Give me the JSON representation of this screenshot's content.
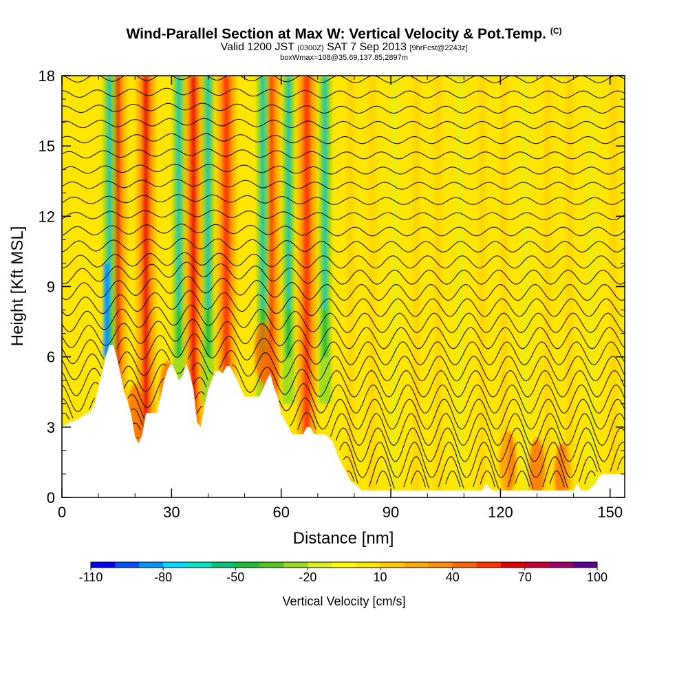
{
  "title": {
    "main": "Wind-Parallel Section at Max W: Vertical Velocity & Pot.Temp.",
    "unit_tag": "(C)",
    "line2_a": "Valid 1200 JST",
    "line2_b": "(0300Z)",
    "line2_c": "SAT 7 Sep 2013",
    "line2_d": "[9hrFcst@2243z]",
    "line3": "boxWmax=108@35.69,137.85,2897m"
  },
  "chart_data": {
    "type": "heatmap",
    "xlabel": "Distance [nm]",
    "ylabel": "Height [Kft MSL]",
    "xlim": [
      0,
      154
    ],
    "ylim": [
      0,
      18
    ],
    "x_ticks": [
      "0",
      "30",
      "60",
      "90",
      "120",
      "150"
    ],
    "y_ticks": [
      "0",
      "3",
      "6",
      "9",
      "12",
      "15",
      "18"
    ],
    "grid": false,
    "colorbar": {
      "label": "Vertical Velocity [cm/s]",
      "tick_labels": [
        "-110",
        "-80",
        "-50",
        "-20",
        "10",
        "40",
        "70",
        "100"
      ],
      "colors": [
        "#0000ff",
        "#0050ff",
        "#0096ff",
        "#00dcff",
        "#00e6c8",
        "#00c878",
        "#1ebe3c",
        "#50c81e",
        "#96dc1e",
        "#dcf01e",
        "#ffff00",
        "#ffe600",
        "#ffc800",
        "#ffaa00",
        "#ff8c00",
        "#ff6400",
        "#ff3200",
        "#e60000",
        "#c80032",
        "#a0006e",
        "#5a0096"
      ]
    },
    "updraft_bands_x": [
      15,
      23,
      36,
      45,
      57,
      67
    ],
    "downdraft_bands_x": [
      13,
      32,
      40,
      55,
      62,
      72
    ],
    "terrain": [
      [
        0,
        3.0
      ],
      [
        2,
        3.2
      ],
      [
        4,
        3.3
      ],
      [
        6,
        3.5
      ],
      [
        8,
        3.7
      ],
      [
        9,
        4.0
      ],
      [
        10,
        4.7
      ],
      [
        11,
        5.3
      ],
      [
        12,
        6.0
      ],
      [
        13,
        6.5
      ],
      [
        14,
        6.5
      ],
      [
        15,
        6.0
      ],
      [
        16,
        5.3
      ],
      [
        17,
        4.5
      ],
      [
        18,
        4.1
      ],
      [
        19,
        3.5
      ],
      [
        20,
        2.6
      ],
      [
        21,
        2.3
      ],
      [
        22,
        2.7
      ],
      [
        23,
        3.6
      ],
      [
        24,
        3.6
      ],
      [
        25,
        3.6
      ],
      [
        26,
        3.6
      ],
      [
        27,
        4.3
      ],
      [
        28,
        5.0
      ],
      [
        29,
        5.5
      ],
      [
        30,
        5.7
      ],
      [
        31,
        5.4
      ],
      [
        32,
        5.0
      ],
      [
        33,
        5.2
      ],
      [
        34,
        5.7
      ],
      [
        35,
        5.3
      ],
      [
        36,
        4.6
      ],
      [
        37,
        3.2
      ],
      [
        38,
        3.0
      ],
      [
        39,
        3.9
      ],
      [
        40,
        4.6
      ],
      [
        41,
        5.0
      ],
      [
        42,
        5.4
      ],
      [
        43,
        5.4
      ],
      [
        44,
        5.3
      ],
      [
        45,
        5.6
      ],
      [
        46,
        5.6
      ],
      [
        47,
        5.3
      ],
      [
        48,
        5.0
      ],
      [
        49,
        4.6
      ],
      [
        50,
        4.3
      ],
      [
        51,
        4.3
      ],
      [
        52,
        4.3
      ],
      [
        53,
        4.3
      ],
      [
        54,
        4.3
      ],
      [
        55,
        4.6
      ],
      [
        56,
        5.0
      ],
      [
        57,
        5.3
      ],
      [
        58,
        4.7
      ],
      [
        59,
        4.3
      ],
      [
        60,
        3.6
      ],
      [
        61,
        3.3
      ],
      [
        62,
        3.0
      ],
      [
        63,
        2.7
      ],
      [
        66,
        2.7
      ],
      [
        67,
        3.0
      ],
      [
        68,
        3.0
      ],
      [
        69,
        2.7
      ],
      [
        72,
        2.7
      ],
      [
        74,
        2.4
      ],
      [
        75,
        2.0
      ],
      [
        76,
        1.6
      ],
      [
        77,
        1.3
      ],
      [
        78,
        1.0
      ],
      [
        79,
        0.7
      ],
      [
        80,
        0.6
      ],
      [
        82,
        0.3
      ],
      [
        84,
        0.3
      ],
      [
        90,
        0.3
      ],
      [
        100,
        0.3
      ],
      [
        110,
        0.3
      ],
      [
        115,
        0.3
      ],
      [
        116,
        0.6
      ],
      [
        117,
        0.4
      ],
      [
        118,
        0.3
      ],
      [
        125,
        0.3
      ],
      [
        135,
        0.3
      ],
      [
        140,
        0.3
      ],
      [
        141,
        0.6
      ],
      [
        142,
        0.3
      ],
      [
        144,
        0.3
      ],
      [
        146,
        0.6
      ],
      [
        147,
        0.9
      ],
      [
        148,
        1.0
      ],
      [
        152,
        1.0
      ],
      [
        154,
        1.0
      ]
    ]
  }
}
